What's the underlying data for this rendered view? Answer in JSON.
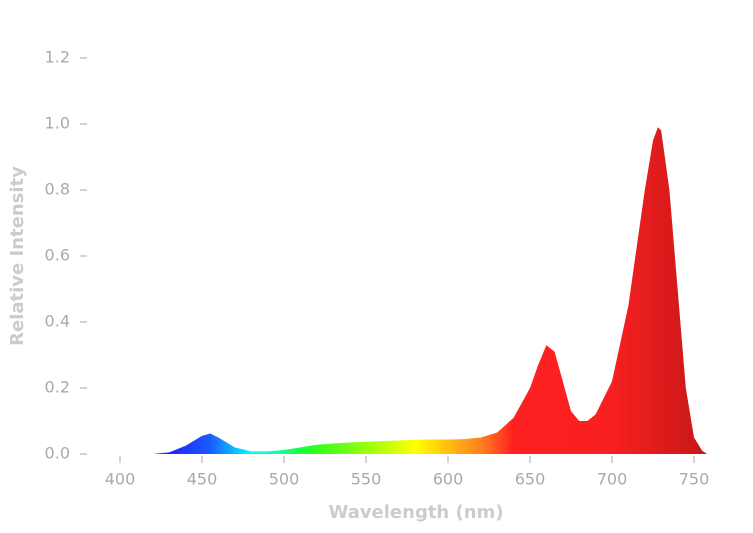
{
  "chart_data": {
    "type": "area",
    "xlabel": "Wavelength (nm)",
    "ylabel": "Relative Intensity",
    "x": [
      420,
      430,
      440,
      450,
      455,
      460,
      470,
      480,
      490,
      500,
      510,
      520,
      530,
      540,
      550,
      560,
      570,
      580,
      590,
      600,
      610,
      620,
      630,
      640,
      650,
      655,
      660,
      665,
      670,
      675,
      680,
      685,
      690,
      700,
      710,
      720,
      725,
      728,
      730,
      735,
      740,
      745,
      750,
      755,
      758
    ],
    "series": [
      {
        "name": "Relative Intensity",
        "values": [
          0,
          0.005,
          0.025,
          0.055,
          0.062,
          0.05,
          0.02,
          0.008,
          0.008,
          0.012,
          0.02,
          0.028,
          0.032,
          0.035,
          0.037,
          0.039,
          0.041,
          0.043,
          0.044,
          0.044,
          0.045,
          0.05,
          0.065,
          0.11,
          0.2,
          0.27,
          0.33,
          0.31,
          0.22,
          0.13,
          0.1,
          0.1,
          0.12,
          0.22,
          0.45,
          0.8,
          0.95,
          0.99,
          0.98,
          0.8,
          0.5,
          0.2,
          0.05,
          0.01,
          0
        ]
      }
    ],
    "fill_gradient": [
      {
        "at": 430,
        "color": "#2020ff"
      },
      {
        "at": 455,
        "color": "#1a5cff"
      },
      {
        "at": 480,
        "color": "#00ffff"
      },
      {
        "at": 515,
        "color": "#20ff20"
      },
      {
        "at": 580,
        "color": "#ffff00"
      },
      {
        "at": 620,
        "color": "#ff8020"
      },
      {
        "at": 640,
        "color": "#ff2020"
      },
      {
        "at": 700,
        "color": "#f82020"
      },
      {
        "at": 755,
        "color": "#c81818"
      }
    ],
    "xlim": [
      380,
      760
    ],
    "ylim": [
      0,
      1.2
    ],
    "xticks": [
      400,
      450,
      500,
      550,
      600,
      650,
      700,
      750
    ],
    "yticks": [
      {
        "value": 0,
        "label": "0.0"
      },
      {
        "value": 0.2,
        "label": "0.2"
      },
      {
        "value": 0.4,
        "label": "0.4"
      },
      {
        "value": 0.6,
        "label": "0.6"
      },
      {
        "value": 0.8,
        "label": "0.8"
      },
      {
        "value": 1.0,
        "label": "1.0"
      },
      {
        "value": 1.2,
        "label": "1.2"
      }
    ]
  }
}
